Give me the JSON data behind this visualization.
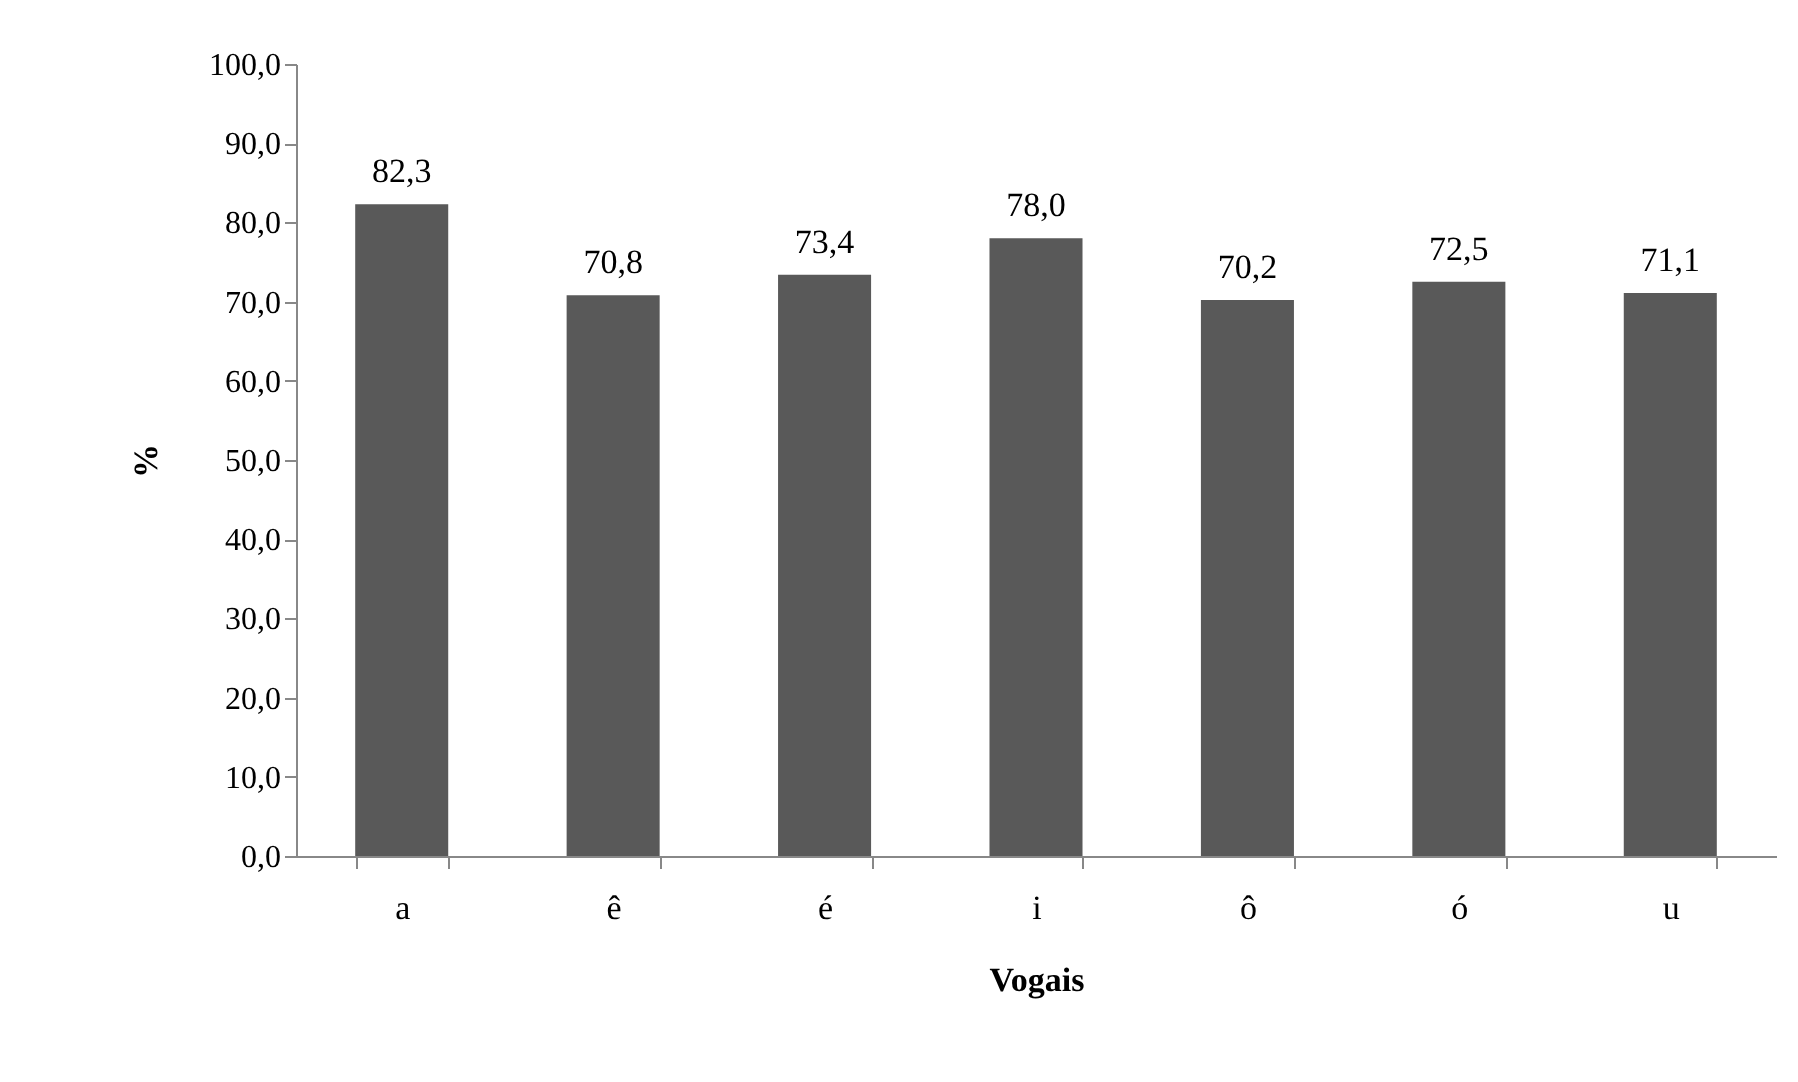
{
  "chart_data": {
    "type": "bar",
    "xlabel": "Vogais",
    "ylabel": "%",
    "categories": [
      "a",
      "ê",
      "é",
      "i",
      "ô",
      "ó",
      "u"
    ],
    "values": [
      82.3,
      70.8,
      73.4,
      78.0,
      70.2,
      72.5,
      71.1
    ],
    "value_labels": [
      "82,3",
      "70,8",
      "73,4",
      "78,0",
      "70,2",
      "72,5",
      "71,1"
    ],
    "color": "#595959",
    "ylim": [
      0,
      100
    ],
    "yticks": [
      {
        "value": 0,
        "label": "0,0"
      },
      {
        "value": 10,
        "label": "10,0"
      },
      {
        "value": 20,
        "label": "20,0"
      },
      {
        "value": 30,
        "label": "30,0"
      },
      {
        "value": 40,
        "label": "40,0"
      },
      {
        "value": 50,
        "label": "50,0"
      },
      {
        "value": 60,
        "label": "60,0"
      },
      {
        "value": 70,
        "label": "70,0"
      },
      {
        "value": 80,
        "label": "80,0"
      },
      {
        "value": 90,
        "label": "90,0"
      },
      {
        "value": 100,
        "label": "100,0"
      }
    ],
    "grid": false
  }
}
